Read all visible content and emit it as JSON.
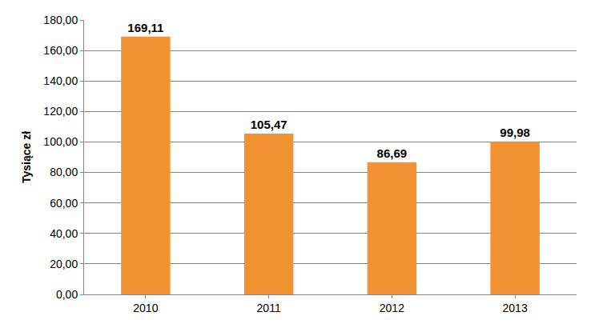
{
  "chart_data": {
    "type": "bar",
    "y_label": "Tysiące zł",
    "categories": [
      "2010",
      "2011",
      "2012",
      "2013"
    ],
    "values": [
      169.11,
      105.47,
      86.69,
      99.98
    ],
    "value_labels": [
      "169,11",
      "105,47",
      "86,69",
      "99,98"
    ],
    "data_labels": true,
    "color": "#f39232",
    "ylim": [
      0,
      180
    ],
    "yticks": [
      {
        "value": 0,
        "label": "0,00"
      },
      {
        "value": 20,
        "label": "20,00"
      },
      {
        "value": 40,
        "label": "40,00"
      },
      {
        "value": 60,
        "label": "60,00"
      },
      {
        "value": 80,
        "label": "80,00"
      },
      {
        "value": 100,
        "label": "100,00"
      },
      {
        "value": 120,
        "label": "120,00"
      },
      {
        "value": 140,
        "label": "140,00"
      },
      {
        "value": 160,
        "label": "160,00"
      },
      {
        "value": 180,
        "label": "180,00"
      }
    ],
    "grid": true
  }
}
